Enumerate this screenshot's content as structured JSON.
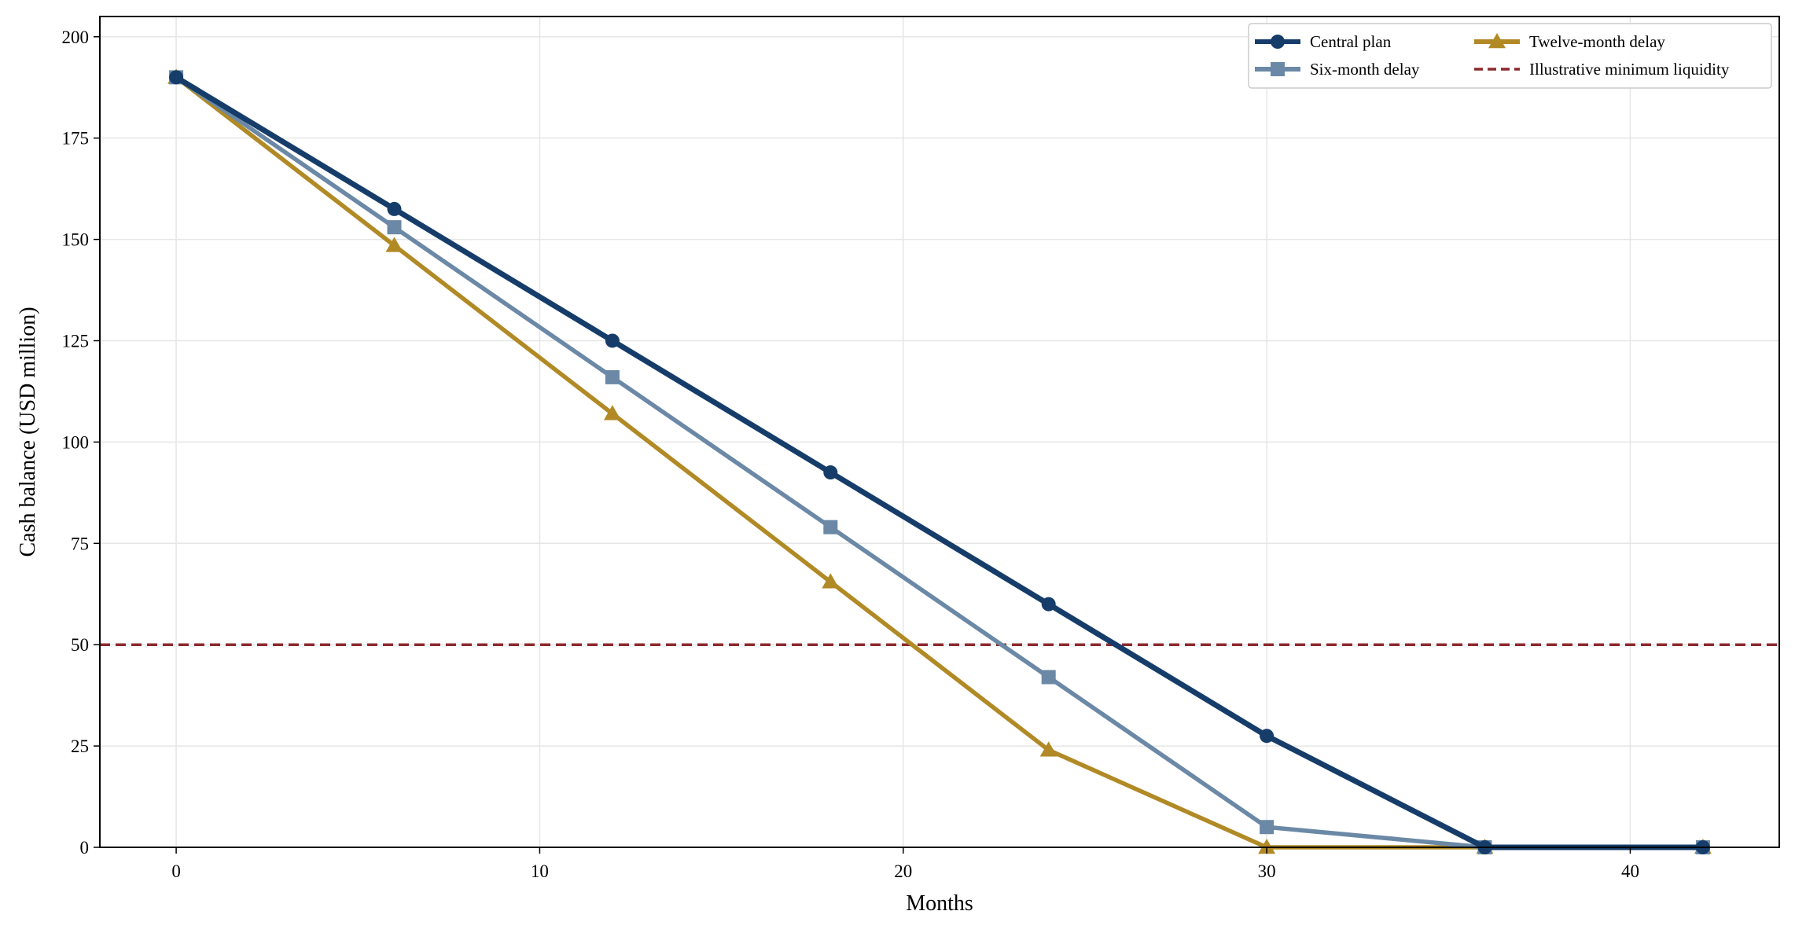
{
  "chart_data": {
    "type": "line",
    "title": "",
    "xlabel": "Months",
    "ylabel": "Cash balance (USD million)",
    "xlim": [
      -2.1,
      44.1
    ],
    "ylim": [
      0,
      205
    ],
    "xticks": [
      0,
      10,
      20,
      30,
      40
    ],
    "yticks": [
      0,
      25,
      50,
      75,
      100,
      125,
      150,
      175,
      200
    ],
    "grid": true,
    "legend_position": "top-right",
    "legend_columns": 2,
    "x": [
      0,
      6,
      12,
      18,
      24,
      30,
      36,
      42
    ],
    "series": [
      {
        "name": "Central plan",
        "color": "#163d6a",
        "marker": "circle",
        "line_style": "solid",
        "values": [
          190,
          157.5,
          125,
          92.5,
          60,
          27.5,
          0,
          0
        ]
      },
      {
        "name": "Six-month delay",
        "color": "#6b89a6",
        "marker": "square",
        "line_style": "solid",
        "values": [
          190,
          153,
          116,
          79,
          42,
          5,
          0,
          0
        ]
      },
      {
        "name": "Twelve-month delay",
        "color": "#b18a26",
        "marker": "triangle",
        "line_style": "solid",
        "values": [
          190,
          148.5,
          107,
          65.5,
          24,
          0,
          0,
          0
        ]
      }
    ],
    "reference_lines": [
      {
        "name": "Illustrative minimum liquidity",
        "y": 50,
        "color": "#8b2a2e",
        "line_style": "dashed"
      }
    ]
  }
}
